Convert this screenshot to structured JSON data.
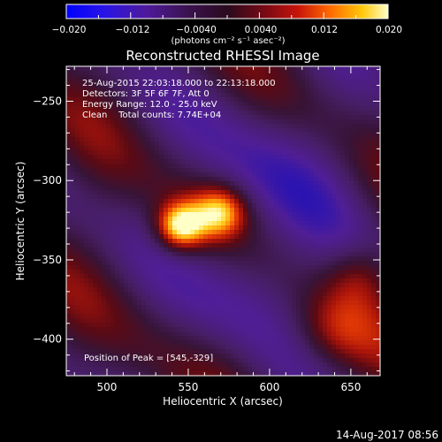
{
  "chart_data": {
    "type": "heatmap",
    "title": "Reconstructed RHESSI Image",
    "xlabel": "Heliocentric X (arcsec)",
    "ylabel": "Heliocentric Y (arcsec)",
    "xlim": [
      475,
      668
    ],
    "ylim": [
      -423,
      -228
    ],
    "x_ticks": [
      500,
      550,
      600,
      650
    ],
    "y_ticks": [
      -250,
      -300,
      -350,
      -400
    ],
    "colorbar": {
      "range": [
        -0.02,
        0.02
      ],
      "ticks": [
        "−0.020",
        "−0.012",
        "−0.0040",
        "0.0040",
        "0.012",
        "0.020"
      ],
      "tick_values": [
        -0.02,
        -0.012,
        -0.004,
        0.004,
        0.012,
        0.02
      ],
      "units": "(photons cm⁻² s⁻¹ asec⁻²)"
    },
    "annotations": {
      "time_range": "25-Aug-2015 22:03:18.000 to 22:13:18.000",
      "detectors": "Detectors: 3F 5F 6F 7F, Att 0",
      "energy": "Energy Range: 12.0 - 25.0 keV",
      "clean": "Clean    Total counts: 7.74E+04",
      "peak": "Position of Peak = [545,-329]"
    },
    "peak": [
      545,
      -329
    ],
    "footer_date": "14-Aug-2017 08:56"
  }
}
